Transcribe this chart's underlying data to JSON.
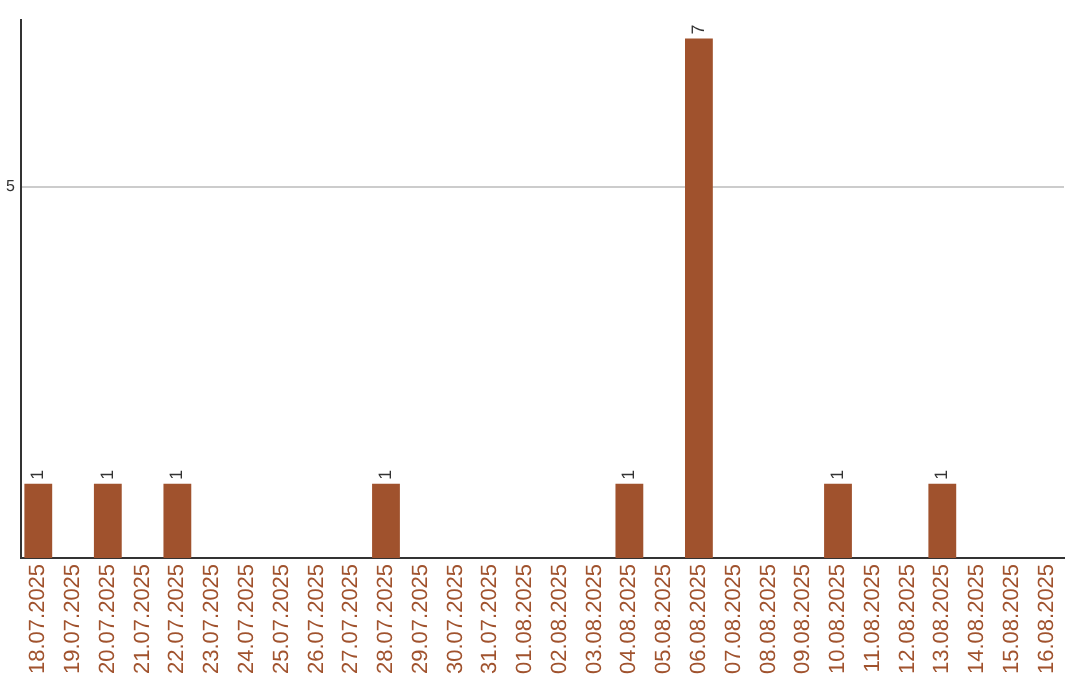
{
  "chart_data": {
    "type": "bar",
    "categories": [
      "18.07.2025",
      "19.07.2025",
      "20.07.2025",
      "21.07.2025",
      "22.07.2025",
      "23.07.2025",
      "24.07.2025",
      "25.07.2025",
      "26.07.2025",
      "27.07.2025",
      "28.07.2025",
      "29.07.2025",
      "30.07.2025",
      "31.07.2025",
      "01.08.2025",
      "02.08.2025",
      "03.08.2025",
      "04.08.2025",
      "05.08.2025",
      "06.08.2025",
      "07.08.2025",
      "08.08.2025",
      "09.08.2025",
      "10.08.2025",
      "11.08.2025",
      "12.08.2025",
      "13.08.2025",
      "14.08.2025",
      "15.08.2025",
      "16.08.2025"
    ],
    "values": [
      1,
      0,
      1,
      0,
      1,
      0,
      0,
      0,
      0,
      0,
      1,
      0,
      0,
      0,
      0,
      0,
      0,
      1,
      0,
      7,
      0,
      0,
      0,
      1,
      0,
      0,
      1,
      0,
      0,
      0
    ],
    "value_labels": [
      "1",
      null,
      "1",
      null,
      "1",
      null,
      null,
      null,
      null,
      null,
      "1",
      null,
      null,
      null,
      null,
      null,
      null,
      "1",
      null,
      "7",
      null,
      null,
      null,
      "1",
      null,
      null,
      "1",
      null,
      null,
      null
    ],
    "color": "#a0522d",
    "ylim": [
      0,
      7.25
    ],
    "yticks": [
      5
    ],
    "grid": "y",
    "legend": false
  }
}
